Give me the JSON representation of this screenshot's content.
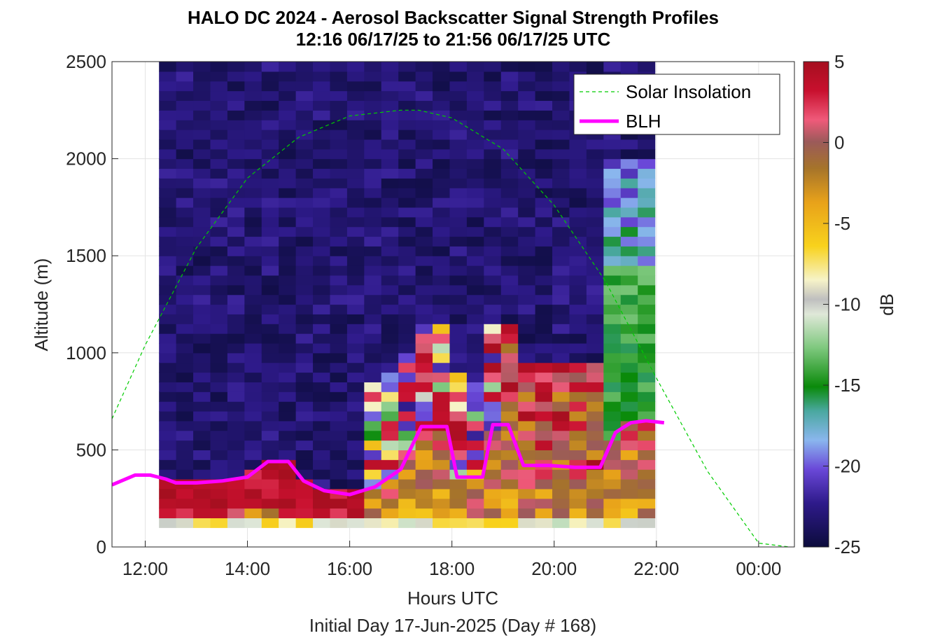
{
  "chart_data": {
    "type": "heatmap",
    "title": "HALO DC 2024 - Aerosol Backscatter Signal Strength Profiles",
    "subtitle": "12:16 06/17/25 to 21:56 06/17/25  UTC",
    "xlabel": "Hours UTC",
    "xlabel2": "Initial Day 17-Jun-2025 (Day # 168)",
    "ylabel": "Altitude (m)",
    "xlim_hours": [
      11.35,
      24.7
    ],
    "ylim": [
      0,
      2500
    ],
    "x_ticks": [
      {
        "hour": 12,
        "label": "12:00"
      },
      {
        "hour": 14,
        "label": "14:00"
      },
      {
        "hour": 16,
        "label": "16:00"
      },
      {
        "hour": 18,
        "label": "18:00"
      },
      {
        "hour": 20,
        "label": "20:00"
      },
      {
        "hour": 22,
        "label": "22:00"
      },
      {
        "hour": 24,
        "label": "00:00"
      }
    ],
    "y_ticks": [
      0,
      500,
      1000,
      1500,
      2000,
      2500
    ],
    "grid": true,
    "colorbar": {
      "label": "dB",
      "range": [
        -25,
        5
      ],
      "ticks": [
        5,
        0,
        -5,
        -10,
        -15,
        -20,
        -25
      ]
    },
    "legend": {
      "placement": "top-right",
      "entries": [
        {
          "label": "Solar Insolation",
          "color": "#00cc00",
          "style": "dashed"
        },
        {
          "label": "BLH",
          "color": "#ff00ff",
          "style": "solid"
        }
      ]
    },
    "heatmap": {
      "x_start_hour": 12.27,
      "x_end_hour": 21.97,
      "n_columns": 29,
      "y_start": 100,
      "y_end": 2500,
      "bin_height": 50,
      "note_values_db": "approximate signal strength (dB) per column profile, lowest bins carry high values near the surface"
    },
    "series": [
      {
        "name": "BLH",
        "x_hours": [
          11.35,
          11.8,
          12.1,
          12.4,
          12.6,
          13.0,
          13.5,
          14.0,
          14.4,
          14.8,
          15.1,
          15.5,
          16.0,
          16.5,
          17.0,
          17.4,
          17.9,
          18.1,
          18.4,
          18.6,
          18.8,
          19.1,
          19.4,
          19.9,
          20.4,
          20.9,
          21.2,
          21.5,
          21.8,
          22.15
        ],
        "y": [
          320,
          370,
          370,
          350,
          330,
          330,
          340,
          360,
          440,
          440,
          340,
          290,
          270,
          310,
          400,
          620,
          620,
          360,
          360,
          360,
          630,
          630,
          420,
          420,
          410,
          410,
          590,
          640,
          650,
          640
        ]
      },
      {
        "name": "Solar Insolation",
        "x_hours": [
          11.35,
          12.0,
          13.0,
          14.0,
          15.0,
          16.0,
          17.0,
          17.35,
          18.0,
          19.0,
          20.0,
          21.0,
          22.0,
          23.0,
          24.0,
          24.6
        ],
        "y": [
          660,
          1040,
          1540,
          1900,
          2110,
          2220,
          2250,
          2250,
          2210,
          2050,
          1760,
          1370,
          870,
          390,
          20,
          0
        ]
      }
    ]
  }
}
